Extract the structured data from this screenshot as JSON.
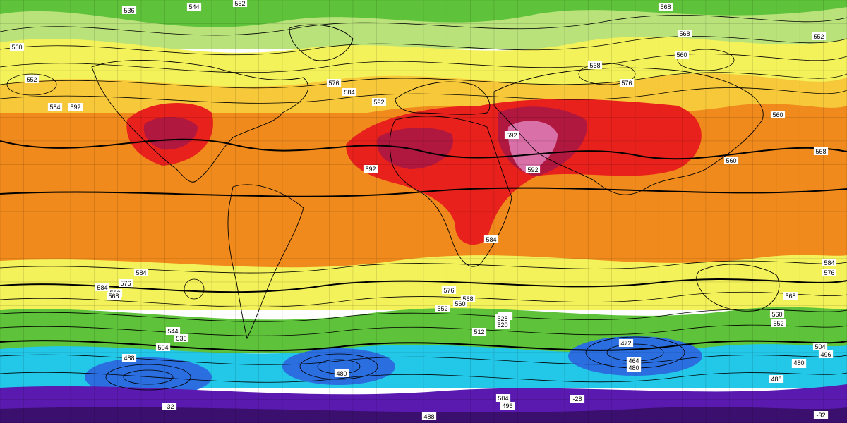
{
  "map": {
    "band_colors": {
      "north_polar": "#b9e27a",
      "north_mid": "#f4f25a",
      "north_sub": "#f6c83a",
      "tropics": "#f08a1c",
      "hot": "#e8211c",
      "very_hot": "#b01840",
      "extreme": "#d970a8",
      "south_yellow": "#f4f25a",
      "south_green": "#5ec23a",
      "south_cyan": "#23c8e8",
      "south_blue": "#2a6ee0",
      "south_purple": "#5a1ab0",
      "south_dark": "#3a0f6e"
    },
    "contour_labels": [
      {
        "text": "536"
      },
      {
        "text": "544"
      },
      {
        "text": "552"
      },
      {
        "text": "568"
      },
      {
        "text": "552"
      },
      {
        "text": "560"
      },
      {
        "text": "552"
      },
      {
        "text": "568"
      },
      {
        "text": "576"
      },
      {
        "text": "584"
      },
      {
        "text": "592"
      },
      {
        "text": "560"
      },
      {
        "text": "568"
      },
      {
        "text": "576"
      },
      {
        "text": "584"
      },
      {
        "text": "592"
      },
      {
        "text": "560"
      },
      {
        "text": "568"
      },
      {
        "text": "560"
      },
      {
        "text": "592"
      },
      {
        "text": "584"
      },
      {
        "text": "592"
      },
      {
        "text": "592"
      },
      {
        "text": "584"
      },
      {
        "text": "584"
      },
      {
        "text": "576"
      },
      {
        "text": "560"
      },
      {
        "text": "568"
      },
      {
        "text": "552"
      },
      {
        "text": "576"
      },
      {
        "text": "568"
      },
      {
        "text": "560"
      },
      {
        "text": "552"
      },
      {
        "text": "544"
      },
      {
        "text": "536"
      },
      {
        "text": "512"
      },
      {
        "text": "520"
      },
      {
        "text": "528"
      },
      {
        "text": "504"
      },
      {
        "text": "496"
      },
      {
        "text": "488"
      },
      {
        "text": "480"
      },
      {
        "text": "472"
      },
      {
        "text": "464"
      },
      {
        "text": "480"
      },
      {
        "text": "488"
      },
      {
        "text": "504"
      },
      {
        "text": "496"
      },
      {
        "text": "488"
      },
      {
        "text": "584"
      },
      {
        "text": "576"
      },
      {
        "text": "568"
      },
      {
        "text": "560"
      },
      {
        "text": "552"
      },
      {
        "text": "496"
      },
      {
        "text": "504"
      },
      {
        "text": "488"
      },
      {
        "text": "480"
      },
      {
        "text": "-32"
      },
      {
        "text": "-28"
      },
      {
        "text": "-32"
      }
    ]
  }
}
